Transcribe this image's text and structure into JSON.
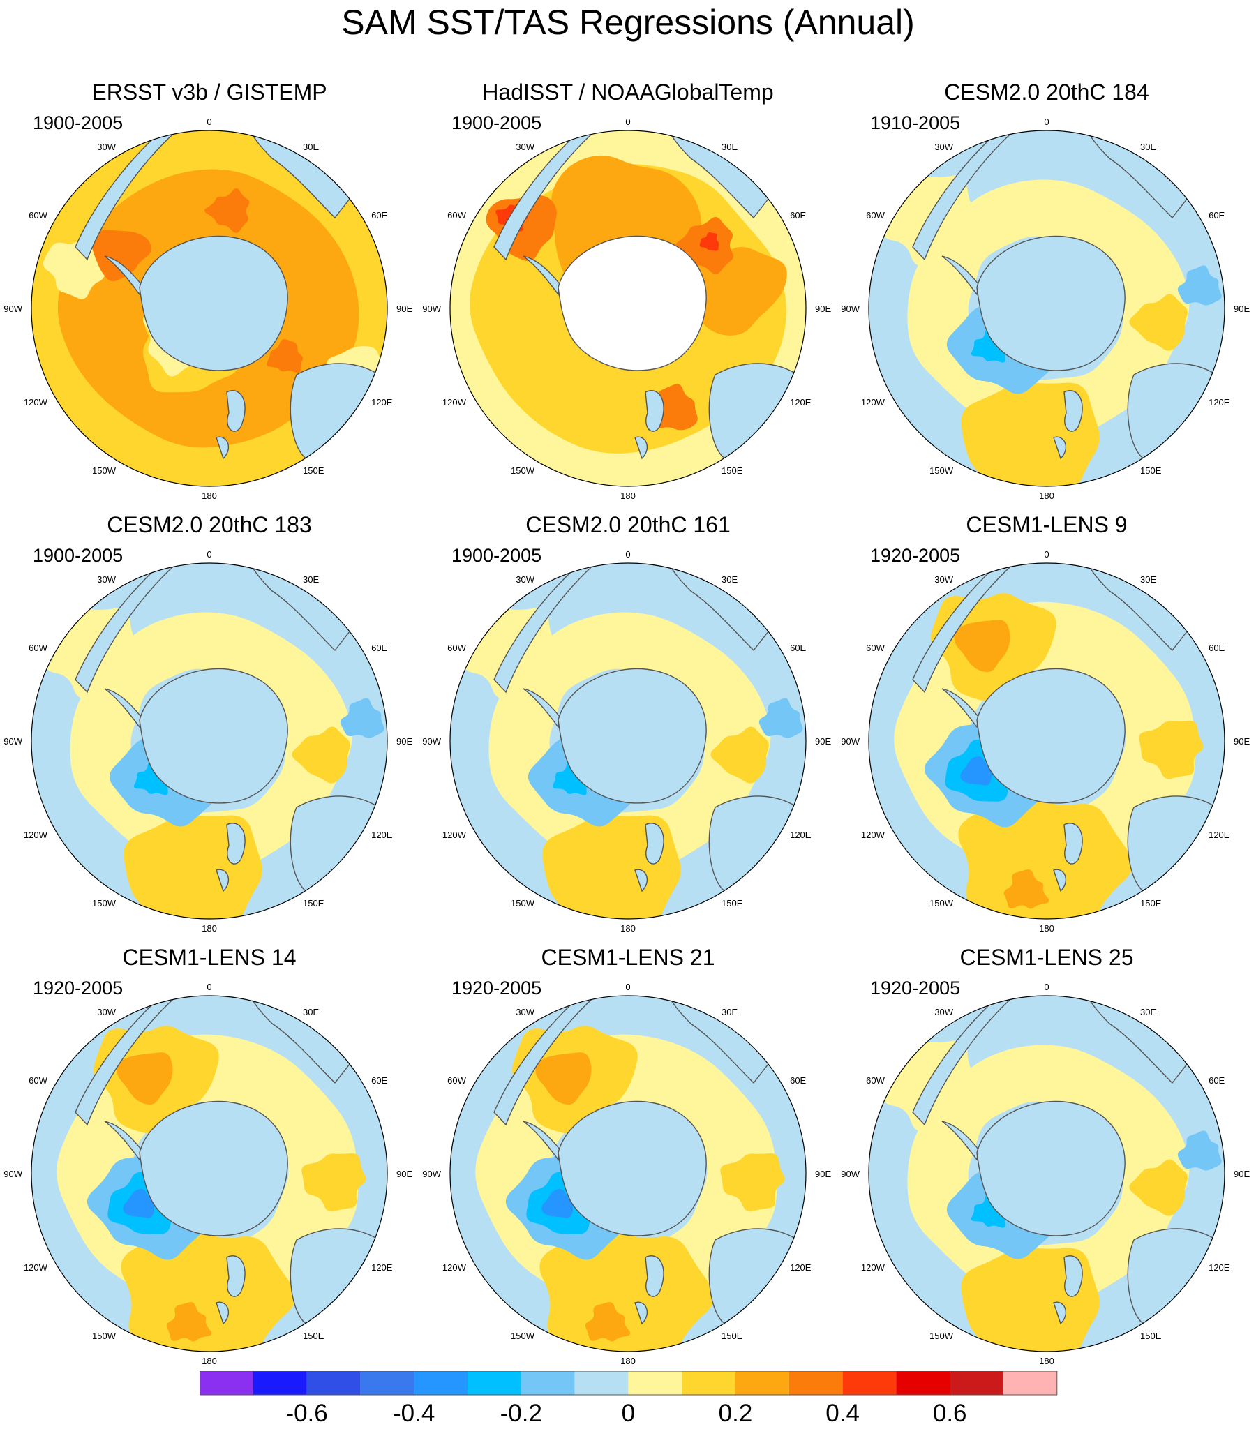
{
  "main_title": "SAM SST/TAS Regressions (Annual)",
  "chart_data": {
    "type": "heatmap",
    "projection": "south-polar-stereographic",
    "title": "SAM SST/TAS Regressions (Annual)",
    "longitude_labels": [
      "0",
      "30E",
      "60E",
      "90E",
      "120E",
      "150E",
      "180",
      "150W",
      "120W",
      "90W",
      "60W",
      "30W"
    ],
    "panels": [
      {
        "title": "ERSST v3b / GISTEMP",
        "period": "1900-2005",
        "style": "obs_warm"
      },
      {
        "title": "HadISST / NOAAGlobalTemp",
        "period": "1900-2005",
        "style": "obs_hot"
      },
      {
        "title": "CESM2.0 20thC 184",
        "period": "1910-2005",
        "style": "model"
      },
      {
        "title": "CESM2.0 20thC 183",
        "period": "1900-2005",
        "style": "model"
      },
      {
        "title": "CESM2.0 20thC 161",
        "period": "1900-2005",
        "style": "model"
      },
      {
        "title": "CESM1-LENS 9",
        "period": "1920-2005",
        "style": "model_strong"
      },
      {
        "title": "CESM1-LENS 14",
        "period": "1920-2005",
        "style": "model_strong"
      },
      {
        "title": "CESM1-LENS 21",
        "period": "1920-2005",
        "style": "model_strong"
      },
      {
        "title": "CESM1-LENS 25",
        "period": "1920-2005",
        "style": "model"
      }
    ],
    "colorbar": {
      "colors": [
        "#8b2ff0",
        "#1a1aff",
        "#2f4fe6",
        "#3a78ee",
        "#2596ff",
        "#00c0ff",
        "#73c6f5",
        "#b7dff4",
        "#fff59a",
        "#fed62e",
        "#fda811",
        "#fb7c0a",
        "#ff3a0a",
        "#e60000",
        "#cc1a1a",
        "#ffb3b3"
      ],
      "tick_values": [
        -0.6,
        -0.4,
        -0.2,
        0,
        0.2,
        0.4,
        0.6
      ],
      "tick_labels": [
        "-0.6",
        "-0.4",
        "-0.2",
        "0",
        "0.2",
        "0.4",
        "0.6"
      ],
      "boundaries": [
        -0.7,
        -0.6,
        -0.5,
        -0.4,
        -0.3,
        -0.2,
        -0.1,
        0,
        0.1,
        0.2,
        0.3,
        0.4,
        0.5,
        0.6,
        0.7
      ]
    },
    "colors": {
      "land": "#b7dff4",
      "coast": "#555555",
      "missing": "#ffffff"
    }
  }
}
